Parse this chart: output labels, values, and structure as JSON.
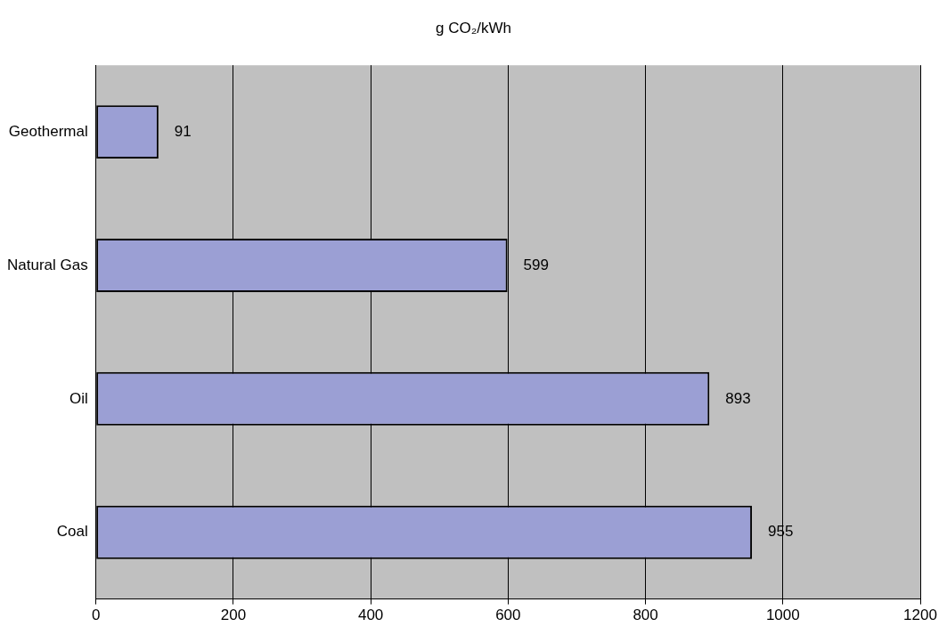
{
  "chart_data": {
    "type": "bar",
    "title": "g CO₂/kWh",
    "orientation": "horizontal",
    "categories": [
      "Geothermal",
      "Natural Gas",
      "Oil",
      "Coal"
    ],
    "values": [
      91,
      599,
      893,
      955
    ],
    "color": "#9b9fd4",
    "xlim": [
      0,
      1200
    ],
    "xticks": [
      0,
      200,
      400,
      600,
      800,
      1000,
      1200
    ],
    "grid": "x",
    "data_labels": true
  }
}
